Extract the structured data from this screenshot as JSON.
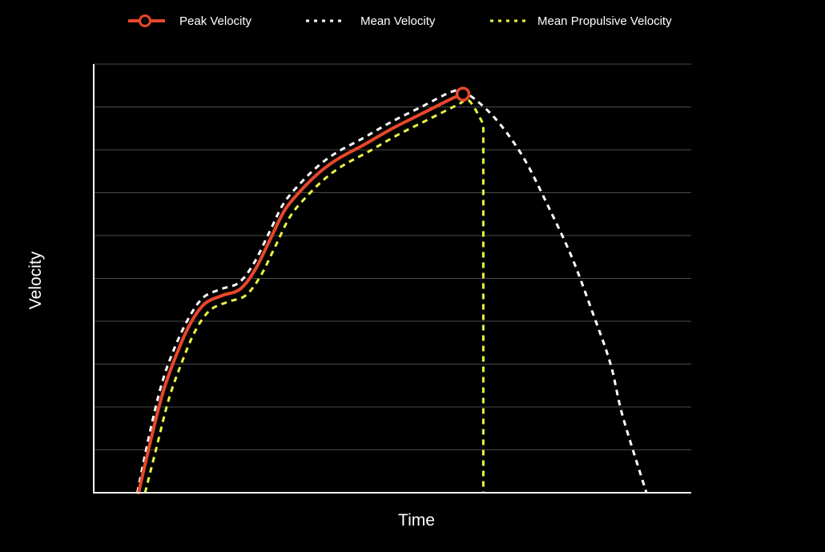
{
  "chart_data": {
    "type": "line",
    "title": "",
    "xlabel": "Time",
    "ylabel": "Velocity",
    "xlim": [
      0,
      100
    ],
    "ylim": [
      0,
      10
    ],
    "grid": true,
    "legend_position": "top",
    "tick_labels_shown": false,
    "series": [
      {
        "name": "Peak Velocity",
        "style": "solid",
        "color": "#e8472a",
        "marker_at_peak": true,
        "x": [
          7.5,
          9.5,
          11.5,
          13.5,
          16.0,
          18.5,
          21.5,
          24.5,
          27.0,
          29.5,
          32.0,
          35.0,
          38.0,
          41.0,
          45.0,
          50.0,
          55.0,
          60.0,
          61.8
        ],
        "y": [
          0.0,
          1.2,
          2.3,
          3.1,
          3.9,
          4.4,
          4.6,
          4.75,
          5.2,
          5.9,
          6.6,
          7.1,
          7.5,
          7.8,
          8.1,
          8.5,
          8.85,
          9.2,
          9.3
        ]
      },
      {
        "name": "Mean Velocity",
        "style": "dashed",
        "color": "#ffffff",
        "x": [
          7.3,
          9.3,
          11.3,
          13.3,
          15.8,
          18.3,
          21.3,
          24.3,
          26.8,
          29.3,
          31.8,
          34.8,
          37.8,
          40.8,
          44.8,
          49.8,
          54.8,
          59.8,
          61.8,
          64.5,
          68.0,
          72.0,
          76.0,
          80.0,
          83.5,
          86.5,
          88.5,
          92.5
        ],
        "y": [
          0.0,
          1.35,
          2.5,
          3.3,
          4.05,
          4.55,
          4.75,
          4.9,
          5.35,
          6.05,
          6.75,
          7.25,
          7.65,
          7.95,
          8.25,
          8.65,
          9.0,
          9.35,
          9.35,
          9.1,
          8.6,
          7.8,
          6.7,
          5.5,
          4.2,
          3.0,
          1.8,
          0.0
        ]
      },
      {
        "name": "Mean Propulsive Velocity",
        "style": "dashed",
        "color": "#eaf542",
        "x": [
          8.6,
          10.5,
          12.5,
          14.5,
          16.9,
          19.4,
          22.4,
          25.4,
          27.9,
          30.4,
          32.9,
          35.9,
          38.9,
          41.9,
          45.9,
          50.9,
          55.9,
          60.9,
          62.8,
          65.2,
          65.2
        ],
        "y": [
          0.0,
          1.05,
          2.15,
          2.95,
          3.75,
          4.25,
          4.45,
          4.6,
          5.05,
          5.75,
          6.45,
          6.95,
          7.35,
          7.65,
          7.95,
          8.35,
          8.7,
          9.05,
          9.15,
          8.6,
          0.0
        ]
      }
    ]
  }
}
